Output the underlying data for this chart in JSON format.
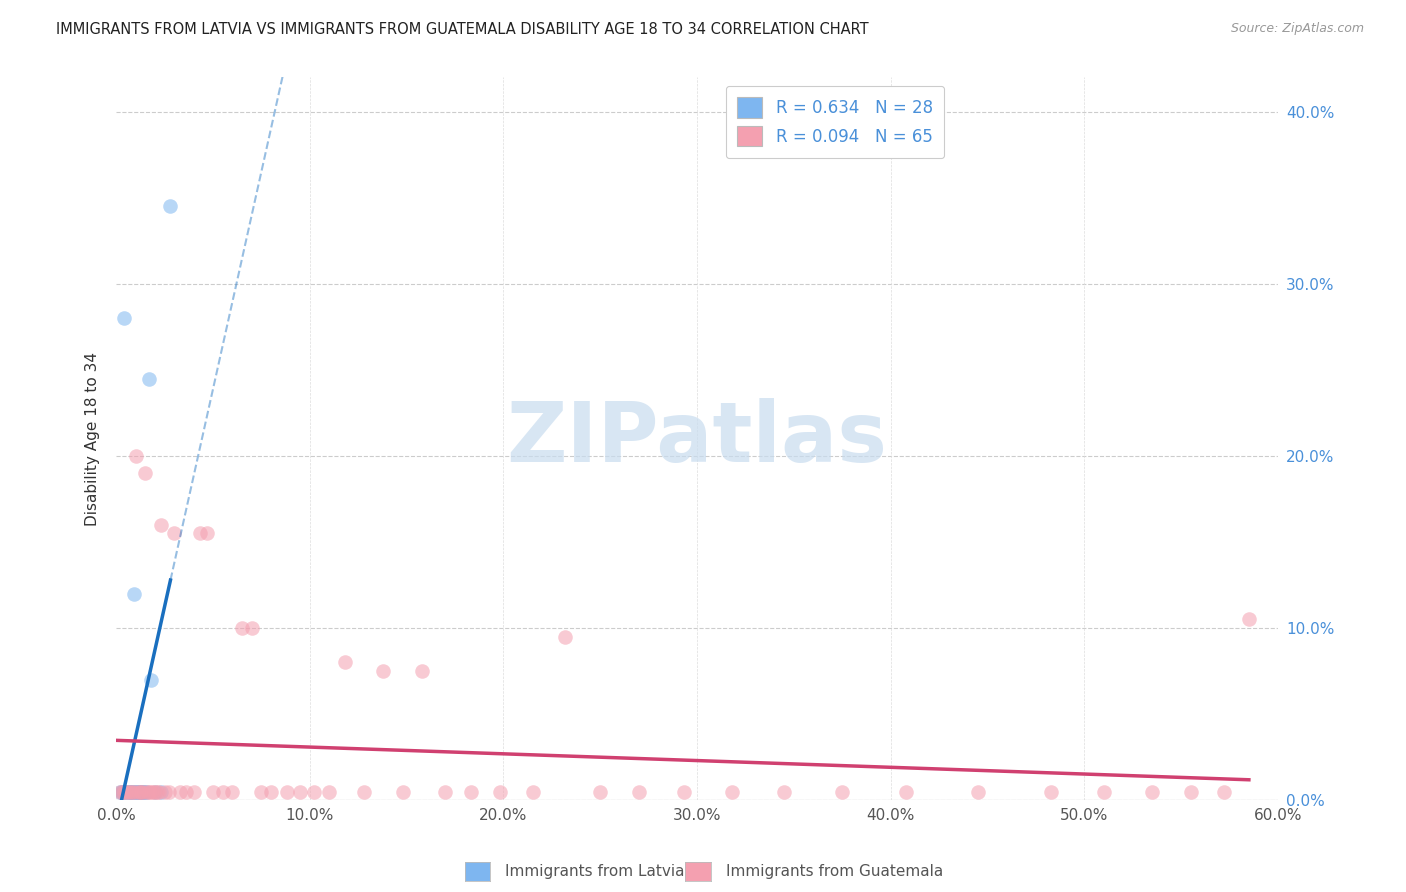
{
  "title": "IMMIGRANTS FROM LATVIA VS IMMIGRANTS FROM GUATEMALA DISABILITY AGE 18 TO 34 CORRELATION CHART",
  "source": "Source: ZipAtlas.com",
  "ylabel": "Disability Age 18 to 34",
  "legend_label1": "Immigrants from Latvia",
  "legend_label2": "Immigrants from Guatemala",
  "R1": 0.634,
  "N1": 28,
  "R2": 0.094,
  "N2": 65,
  "color1": "#7EB6F0",
  "color2": "#F4A0B0",
  "line_color1": "#1A6FBF",
  "line_color2": "#D04070",
  "scatter_alpha": 0.55,
  "scatter_size": 110,
  "watermark_text": "ZIPatlas",
  "watermark_color": "#C8DCEF",
  "xlim": [
    0.0,
    0.6
  ],
  "ylim": [
    0.0,
    0.42
  ],
  "xtick_vals": [
    0.0,
    0.1,
    0.2,
    0.3,
    0.4,
    0.5,
    0.6
  ],
  "ytick_vals": [
    0.0,
    0.1,
    0.2,
    0.3,
    0.4
  ],
  "latvia_x": [
    0.002,
    0.003,
    0.003,
    0.004,
    0.004,
    0.005,
    0.006,
    0.007,
    0.007,
    0.008,
    0.008,
    0.009,
    0.009,
    0.01,
    0.01,
    0.011,
    0.012,
    0.012,
    0.013,
    0.014,
    0.014,
    0.015,
    0.016,
    0.017,
    0.018,
    0.02,
    0.023,
    0.028
  ],
  "latvia_y": [
    0.005,
    0.005,
    0.005,
    0.28,
    0.005,
    0.005,
    0.005,
    0.005,
    0.005,
    0.005,
    0.005,
    0.12,
    0.005,
    0.005,
    0.005,
    0.005,
    0.005,
    0.005,
    0.005,
    0.005,
    0.005,
    0.005,
    0.005,
    0.245,
    0.07,
    0.005,
    0.005,
    0.345
  ],
  "guatemala_x": [
    0.002,
    0.003,
    0.004,
    0.005,
    0.006,
    0.007,
    0.008,
    0.009,
    0.01,
    0.011,
    0.012,
    0.013,
    0.014,
    0.015,
    0.016,
    0.017,
    0.018,
    0.019,
    0.02,
    0.021,
    0.022,
    0.023,
    0.025,
    0.027,
    0.03,
    0.033,
    0.036,
    0.04,
    0.043,
    0.047,
    0.05,
    0.055,
    0.06,
    0.065,
    0.07,
    0.075,
    0.08,
    0.088,
    0.095,
    0.102,
    0.11,
    0.118,
    0.128,
    0.138,
    0.148,
    0.158,
    0.17,
    0.183,
    0.198,
    0.215,
    0.232,
    0.25,
    0.27,
    0.293,
    0.318,
    0.345,
    0.375,
    0.408,
    0.445,
    0.483,
    0.51,
    0.535,
    0.555,
    0.572,
    0.585
  ],
  "guatemala_y": [
    0.005,
    0.005,
    0.005,
    0.005,
    0.005,
    0.005,
    0.005,
    0.005,
    0.2,
    0.005,
    0.005,
    0.005,
    0.005,
    0.19,
    0.005,
    0.005,
    0.005,
    0.005,
    0.005,
    0.005,
    0.005,
    0.16,
    0.005,
    0.005,
    0.155,
    0.005,
    0.005,
    0.005,
    0.155,
    0.155,
    0.005,
    0.005,
    0.005,
    0.1,
    0.1,
    0.005,
    0.005,
    0.005,
    0.005,
    0.005,
    0.005,
    0.08,
    0.005,
    0.075,
    0.005,
    0.075,
    0.005,
    0.005,
    0.005,
    0.005,
    0.095,
    0.005,
    0.005,
    0.005,
    0.005,
    0.005,
    0.005,
    0.005,
    0.005,
    0.005,
    0.005,
    0.005,
    0.005,
    0.005,
    0.105
  ]
}
